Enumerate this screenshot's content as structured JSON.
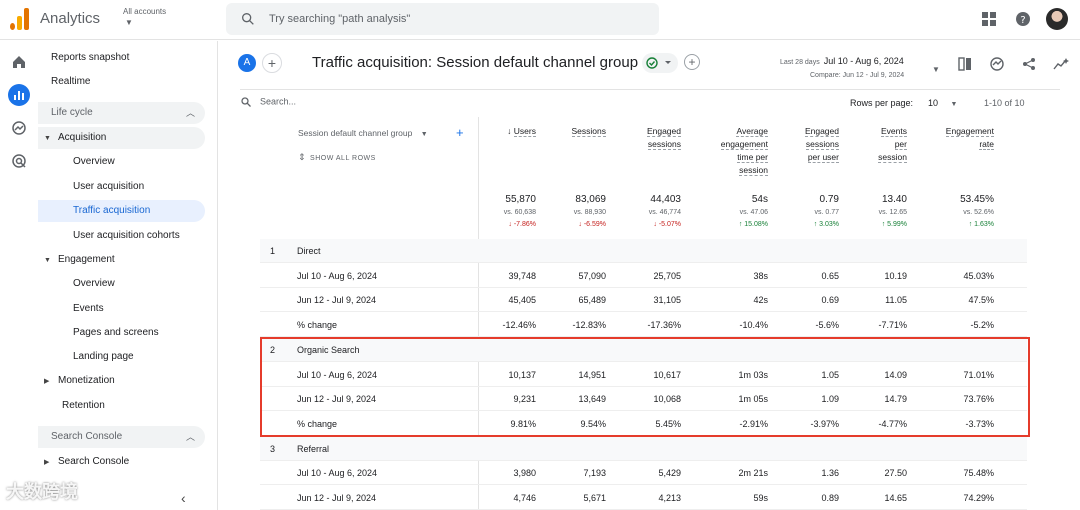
{
  "app": {
    "title": "Analytics",
    "accounts_label": "All accounts",
    "search_placeholder": "Try searching \"path analysis\""
  },
  "nav": {
    "items": [
      {
        "label": "Reports snapshot"
      },
      {
        "label": "Realtime"
      }
    ],
    "section_lifecycle": "Life cycle",
    "acquisition": "Acquisition",
    "acquisition_children": [
      "Overview",
      "User acquisition",
      "Traffic acquisition",
      "User acquisition cohorts"
    ],
    "engagement": "Engagement",
    "engagement_children": [
      "Overview",
      "Events",
      "Pages and screens",
      "Landing page"
    ],
    "monetization": "Monetization",
    "retention": "Retention",
    "section_search_console": "Search Console",
    "search_console": "Search Console"
  },
  "header": {
    "avatar_letter": "A",
    "title": "Traffic acquisition: Session default channel group",
    "date_prefix": "Last 28 days",
    "date_range": "Jul 10 - Aug 6, 2024",
    "compare": "Compare: Jun 12 - Jul 9, 2024"
  },
  "table": {
    "search_placeholder": "Search...",
    "rows_per_page_label": "Rows per page:",
    "rows_per_page_value": "10",
    "pager": "1-10 of 10",
    "dimension_header": "Session default channel group",
    "show_all_rows": "SHOW ALL ROWS",
    "columns": [
      {
        "lines": [
          "Users"
        ],
        "sorted": true
      },
      {
        "lines": [
          "Sessions"
        ]
      },
      {
        "lines": [
          "Engaged",
          "sessions"
        ]
      },
      {
        "lines": [
          "Average",
          "engagement",
          "time per",
          "session"
        ]
      },
      {
        "lines": [
          "Engaged",
          "sessions",
          "per user"
        ]
      },
      {
        "lines": [
          "Events",
          "per",
          "session"
        ]
      },
      {
        "lines": [
          "Engagement",
          "rate"
        ]
      }
    ],
    "totals": [
      {
        "value": "55,870",
        "compare": "vs. 60,638",
        "delta": "↓ -7.86%",
        "dir": "down"
      },
      {
        "value": "83,069",
        "compare": "vs. 88,930",
        "delta": "↓ -6.59%",
        "dir": "down"
      },
      {
        "value": "44,403",
        "compare": "vs. 46,774",
        "delta": "↓ -5.07%",
        "dir": "down"
      },
      {
        "value": "54s",
        "compare": "vs. 47.06",
        "delta": "↑ 15.08%",
        "dir": "up"
      },
      {
        "value": "0.79",
        "compare": "vs. 0.77",
        "delta": "↑ 3.03%",
        "dir": "up"
      },
      {
        "value": "13.40",
        "compare": "vs. 12.65",
        "delta": "↑ 5.99%",
        "dir": "up"
      },
      {
        "value": "53.45%",
        "compare": "vs. 52.6%",
        "delta": "↑ 1.63%",
        "dir": "up"
      }
    ],
    "rows": [
      {
        "num": "1",
        "label": "Direct",
        "group": true,
        "cells": []
      },
      {
        "label": "Jul 10 - Aug 6, 2024",
        "cells": [
          "39,748",
          "57,090",
          "25,705",
          "38s",
          "0.65",
          "10.19",
          "45.03%"
        ]
      },
      {
        "label": "Jun 12 - Jul 9, 2024",
        "cells": [
          "45,405",
          "65,489",
          "31,105",
          "42s",
          "0.69",
          "11.05",
          "47.5%"
        ]
      },
      {
        "label": "% change",
        "cells": [
          "-12.46%",
          "-12.83%",
          "-17.36%",
          "-10.4%",
          "-5.6%",
          "-7.71%",
          "-5.2%"
        ]
      },
      {
        "num": "2",
        "label": "Organic Search",
        "group": true,
        "cells": []
      },
      {
        "label": "Jul 10 - Aug 6, 2024",
        "cells": [
          "10,137",
          "14,951",
          "10,617",
          "1m 03s",
          "1.05",
          "14.09",
          "71.01%"
        ]
      },
      {
        "label": "Jun 12 - Jul 9, 2024",
        "cells": [
          "9,231",
          "13,649",
          "10,068",
          "1m 05s",
          "1.09",
          "14.79",
          "73.76%"
        ]
      },
      {
        "label": "% change",
        "cells": [
          "9.81%",
          "9.54%",
          "5.45%",
          "-2.91%",
          "-3.97%",
          "-4.77%",
          "-3.73%"
        ]
      },
      {
        "num": "3",
        "label": "Referral",
        "group": true,
        "cells": []
      },
      {
        "label": "Jul 10 - Aug 6, 2024",
        "cells": [
          "3,980",
          "7,193",
          "5,429",
          "2m 21s",
          "1.36",
          "27.50",
          "75.48%"
        ]
      },
      {
        "label": "Jun 12 - Jul 9, 2024",
        "cells": [
          "4,746",
          "5,671",
          "4,213",
          "59s",
          "0.89",
          "14.65",
          "74.29%"
        ]
      }
    ]
  },
  "watermark": "大数跨境",
  "colors": {
    "accent": "#1a73e8",
    "highlight": "#e53b2b",
    "down": "#c5221f",
    "up": "#188038"
  }
}
